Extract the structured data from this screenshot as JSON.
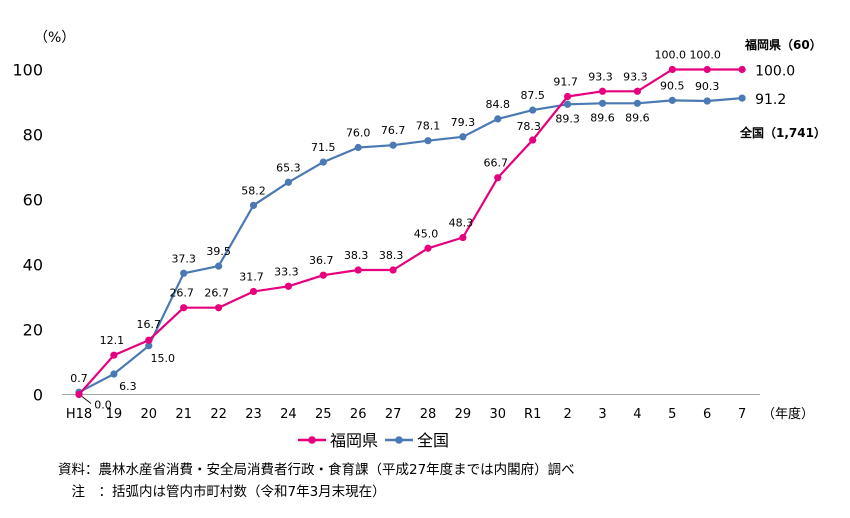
{
  "chart_data": {
    "type": "line",
    "y_unit": "（%）",
    "x_unit": "（年度）",
    "categories": [
      "H18",
      "19",
      "20",
      "21",
      "22",
      "23",
      "24",
      "25",
      "26",
      "27",
      "28",
      "29",
      "30",
      "R1",
      "2",
      "3",
      "4",
      "5",
      "6",
      "7"
    ],
    "ylim": [
      0,
      100
    ],
    "yticks": [
      0,
      20,
      40,
      60,
      80,
      100
    ],
    "grid": false,
    "series": [
      {
        "name": "福岡県",
        "color": "#e6007e",
        "values": [
          0.0,
          12.1,
          16.7,
          26.7,
          26.7,
          31.7,
          33.3,
          36.7,
          38.3,
          38.3,
          45.0,
          48.3,
          66.7,
          78.3,
          91.7,
          93.3,
          93.3,
          100.0,
          100.0,
          100.0
        ],
        "end_label": "福岡県（60）",
        "end_value": "100.0"
      },
      {
        "name": "全国",
        "color": "#4a79b3",
        "values": [
          0.7,
          6.3,
          15.0,
          37.3,
          39.5,
          58.2,
          65.3,
          71.5,
          76.0,
          76.7,
          78.1,
          79.3,
          84.8,
          87.5,
          89.3,
          89.6,
          89.6,
          90.5,
          90.3,
          91.2
        ],
        "end_label": "全国（1,741）",
        "end_value": "91.2"
      }
    ],
    "legend_position": "bottom"
  },
  "notes": [
    "資料：農林水産省消費・安全局消費者行政・食育課（平成27年度までは内閣府）調べ",
    "　注　：括弧内は管内市町村数（令和7年3月末現在）"
  ]
}
